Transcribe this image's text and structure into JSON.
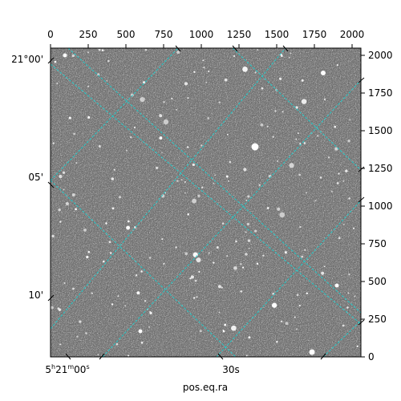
{
  "image": {
    "kind": "grayscale astronomical star field",
    "background_gray": "#7a7a7a",
    "grid_color": "#22cccc"
  },
  "pixel_axes": {
    "top_ticks": [
      "0",
      "250",
      "500",
      "750",
      "1000",
      "1250",
      "1500",
      "1750",
      "2000"
    ],
    "right_ticks": [
      "0",
      "250",
      "500",
      "750",
      "1000",
      "1250",
      "1500",
      "1750",
      "2000"
    ]
  },
  "world_axes": {
    "dec_ticks": [
      "21°00'",
      "05'",
      "10'"
    ],
    "ra_tick_major": {
      "base": "5",
      "h": "h",
      "m_val": "21",
      "m": "m",
      "s_val": "00",
      "s": "s"
    },
    "ra_tick_minor": "30s",
    "xlabel": "pos.eq.ra"
  }
}
